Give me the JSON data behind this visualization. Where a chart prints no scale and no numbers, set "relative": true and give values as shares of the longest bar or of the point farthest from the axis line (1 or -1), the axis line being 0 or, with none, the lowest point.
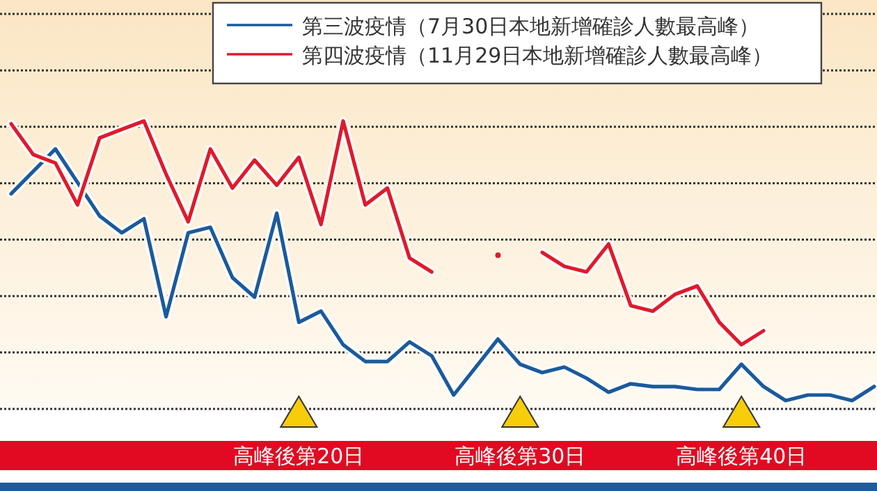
{
  "chart_data": {
    "type": "line",
    "relative": true,
    "grid": true,
    "legend": "top right",
    "tick_labels": "x",
    "marker": "none",
    "line_style": "solid",
    "categories": [
      null,
      null,
      null,
      null,
      null,
      null,
      null,
      null,
      null,
      null,
      null,
      null,
      null,
      "高峰後第20日",
      null,
      null,
      null,
      null,
      null,
      null,
      null,
      null,
      null,
      "高峰後第30日",
      null,
      null,
      null,
      null,
      null,
      null,
      null,
      null,
      null,
      "高峰後第40日",
      null,
      null,
      null,
      null,
      null,
      null
    ],
    "series": [
      {
        "name": "第三波疫情（7月30日本地新增確診人數最高峰）",
        "color": "#1b5a9c",
        "values": [
          0.74,
          0.82,
          0.9,
          0.78,
          0.66,
          0.6,
          0.65,
          0.3,
          0.6,
          0.62,
          0.44,
          0.37,
          0.67,
          0.28,
          0.32,
          0.2,
          0.14,
          0.14,
          0.21,
          0.16,
          0.02,
          0.12,
          0.22,
          0.13,
          0.1,
          0.12,
          0.08,
          0.03,
          0.06,
          0.05,
          0.05,
          0.04,
          0.04,
          0.13,
          0.05,
          0.0,
          0.02,
          0.02,
          0,
          0.05
        ]
      },
      {
        "name": "第四波疫情（11月29日本地新增確診人數最高峰）",
        "color": "#e01a2b",
        "values": [
          0.99,
          0.88,
          0.85,
          0.7,
          0.94,
          0.97,
          1.0,
          0.81,
          0.64,
          0.9,
          0.76,
          0.86,
          0.77,
          0.87,
          0.63,
          1.0,
          0.7,
          0.76,
          0.51,
          0.46,
          null,
          null,
          0.52,
          null,
          0.53,
          0.48,
          0.46,
          0.56,
          0.34,
          0.32,
          0.38,
          0.41,
          0.28,
          0.2,
          0.25,
          null,
          null,
          null,
          null,
          null
        ]
      }
    ]
  }
}
